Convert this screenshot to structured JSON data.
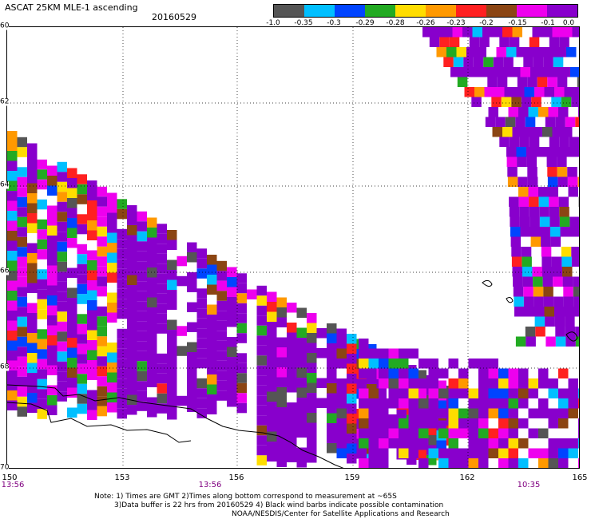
{
  "header": {
    "title": "ASCAT 25KM MLE-1 ascending",
    "date": "20160529"
  },
  "colorbar": {
    "labels": [
      "-1.0",
      "-0.35",
      "-0.3",
      "-0.29",
      "-0.28",
      "-0.26",
      "-0.23",
      "-0.2",
      "-0.15",
      "-0.1",
      "0.0"
    ],
    "colors": [
      "#555555",
      "#00bfff",
      "#0044ff",
      "#22aa22",
      "#ffdd00",
      "#ff9900",
      "#ff2020",
      "#8b4513",
      "#ee00ee",
      "#8800cc"
    ]
  },
  "axes": {
    "lat_labels": [
      "60",
      "62",
      "64",
      "66",
      "68",
      "70"
    ],
    "lon_labels": [
      "150",
      "153",
      "156",
      "159",
      "162",
      "165"
    ],
    "time_labels": [
      "13:56",
      "13:56",
      "10:35"
    ]
  },
  "notes": {
    "line1": "Note: 1) Times are GMT 2)Times along bottom correspond to measurement at ~65S",
    "line2": "3)Data buffer is 22 hrs from 20160529 4) Black wind barbs indicate possible contamination",
    "line3": "NOAA/NESDIS/Center for Satellite Applications and Research"
  }
}
